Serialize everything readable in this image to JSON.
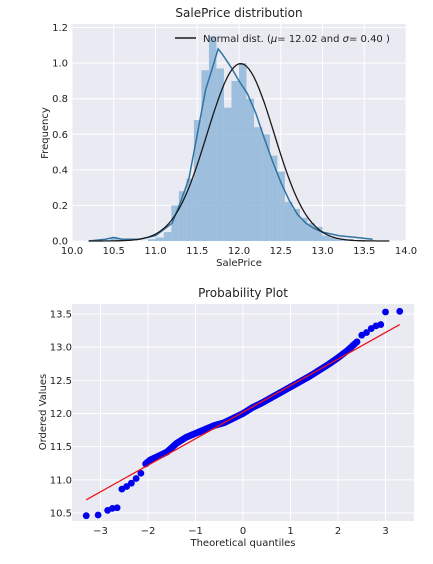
{
  "chart_data": [
    {
      "type": "histogram",
      "title": "SalePrice distribution",
      "xlabel": "SalePrice",
      "ylabel": "Frequency",
      "xlim": [
        10.0,
        14.0
      ],
      "ylim": [
        0.0,
        1.22
      ],
      "xticks": [
        "10.0",
        "10.5",
        "11.0",
        "11.5",
        "12.0",
        "12.5",
        "13.0",
        "13.5",
        "14.0"
      ],
      "xtick_values": [
        10.0,
        10.5,
        11.0,
        11.5,
        12.0,
        12.5,
        13.0,
        13.5,
        14.0
      ],
      "yticks": [
        "0.0",
        "0.2",
        "0.4",
        "0.6",
        "0.8",
        "1.0",
        "1.2"
      ],
      "ytick_values": [
        0.0,
        0.2,
        0.4,
        0.6,
        0.8,
        1.0,
        1.2
      ],
      "grid": true,
      "legend_position": "top-right",
      "legend_label": "Normal dist. ($\\mu=$ 12.02 and $\\sigma=$ 0.40 )",
      "hist_bin_edges": [
        10.46,
        10.55,
        10.64,
        10.73,
        10.82,
        10.91,
        11.0,
        11.1,
        11.19,
        11.28,
        11.37,
        11.46,
        11.55,
        11.64,
        11.73,
        11.82,
        11.91,
        12.0,
        12.09,
        12.18,
        12.28,
        12.37,
        12.46,
        12.55,
        12.64,
        12.73,
        12.82,
        12.91,
        13.0,
        13.09,
        13.18,
        13.27,
        13.37,
        13.46,
        13.55
      ],
      "hist_values": [
        0.02,
        0.01,
        0.0,
        0.0,
        0.0,
        0.01,
        0.02,
        0.05,
        0.2,
        0.28,
        0.35,
        0.68,
        0.96,
        1.15,
        0.97,
        0.75,
        0.9,
        1.0,
        0.8,
        0.64,
        0.6,
        0.48,
        0.39,
        0.22,
        0.18,
        0.13,
        0.1,
        0.08,
        0.03,
        0.02,
        0.01,
        0.01,
        0.0,
        0.0
      ],
      "kde": {
        "x": [
          10.2,
          10.4,
          10.5,
          10.6,
          10.8,
          11.0,
          11.2,
          11.3,
          11.4,
          11.5,
          11.6,
          11.7,
          11.75,
          11.8,
          11.9,
          12.0,
          12.1,
          12.2,
          12.3,
          12.4,
          12.5,
          12.6,
          12.7,
          12.8,
          12.9,
          13.0,
          13.2,
          13.4,
          13.6
        ],
        "y": [
          0.0,
          0.01,
          0.02,
          0.01,
          0.01,
          0.03,
          0.1,
          0.22,
          0.35,
          0.6,
          0.85,
          1.0,
          1.08,
          1.05,
          0.98,
          0.9,
          0.83,
          0.72,
          0.58,
          0.45,
          0.33,
          0.23,
          0.15,
          0.1,
          0.07,
          0.05,
          0.03,
          0.02,
          0.01
        ]
      },
      "normal": {
        "mu": 12.02,
        "sigma": 0.4
      }
    },
    {
      "type": "scatter",
      "title": "Probability Plot",
      "xlabel": "Theoretical quantiles",
      "ylabel": "Ordered Values",
      "xlim": [
        -3.6,
        3.6
      ],
      "ylim": [
        10.38,
        13.65
      ],
      "xticks": [
        "−3",
        "−2",
        "−1",
        "0",
        "1",
        "2",
        "3"
      ],
      "xtick_values": [
        -3,
        -2,
        -1,
        0,
        1,
        2,
        3
      ],
      "yticks": [
        "10.5",
        "11.0",
        "11.5",
        "12.0",
        "12.5",
        "13.0",
        "13.5"
      ],
      "ytick_values": [
        10.5,
        11.0,
        11.5,
        12.0,
        12.5,
        13.0,
        13.5
      ],
      "grid": true,
      "line": {
        "x": [
          -3.3,
          3.3
        ],
        "y": [
          10.7,
          13.34
        ]
      },
      "points": {
        "x": [
          -3.3,
          -3.05,
          -2.85,
          -2.75,
          -2.65,
          -2.55,
          -2.45,
          -2.35,
          -2.25,
          -2.15,
          -2.05,
          -1.95,
          -1.8,
          -1.6,
          -1.4,
          -1.2,
          -1.0,
          -0.8,
          -0.6,
          -0.4,
          -0.2,
          0.0,
          0.2,
          0.4,
          0.6,
          0.8,
          1.0,
          1.2,
          1.4,
          1.6,
          1.8,
          2.0,
          2.2,
          2.4,
          2.5,
          2.6,
          2.7,
          2.8,
          2.9,
          3.0,
          3.3
        ],
        "y": [
          10.46,
          10.47,
          10.54,
          10.57,
          10.58,
          10.86,
          10.9,
          10.95,
          11.02,
          11.1,
          11.24,
          11.3,
          11.35,
          11.42,
          11.55,
          11.64,
          11.7,
          11.76,
          11.82,
          11.86,
          11.93,
          12.0,
          12.09,
          12.16,
          12.24,
          12.32,
          12.4,
          12.48,
          12.56,
          12.65,
          12.74,
          12.84,
          12.95,
          13.08,
          13.18,
          13.22,
          13.28,
          13.32,
          13.34,
          13.53,
          13.54
        ]
      }
    }
  ]
}
